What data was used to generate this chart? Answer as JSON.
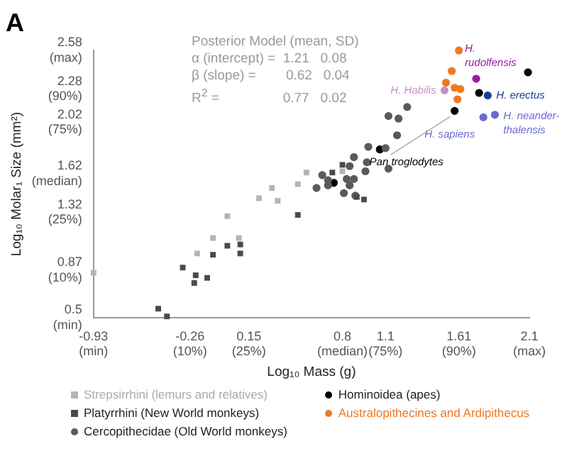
{
  "chart_data": {
    "type": "scatter",
    "title": "A",
    "xlabel": "Log₁₀ Mass (g)",
    "ylabel": "Log₁₀ Molar₁ Size (mm²)",
    "xlim": [
      -0.93,
      2.1
    ],
    "ylim": [
      0.5,
      2.58
    ],
    "xticks": [
      {
        "value": -0.93,
        "label": "-0.93\n(min)"
      },
      {
        "value": -0.26,
        "label": "-0.26\n(10%)"
      },
      {
        "value": 0.15,
        "label": "0.15\n(25%)"
      },
      {
        "value": 0.8,
        "label": "0.8\n(median)"
      },
      {
        "value": 1.1,
        "label": "1.1\n(75%)"
      },
      {
        "value": 1.61,
        "label": "1.61\n(90%)"
      },
      {
        "value": 2.1,
        "label": "2.1\n(max)"
      }
    ],
    "yticks": [
      {
        "value": 0.5,
        "label": "0.5\n(min)"
      },
      {
        "value": 0.87,
        "label": "0.87\n(10%)"
      },
      {
        "value": 1.32,
        "label": "1.32\n(25%)"
      },
      {
        "value": 1.62,
        "label": "1.62\n(median)"
      },
      {
        "value": 2.02,
        "label": "2.02\n(75%)"
      },
      {
        "value": 2.28,
        "label": "2.28\n(90%)"
      },
      {
        "value": 2.58,
        "label": "2.58\n(max)"
      }
    ],
    "grid": false,
    "legend": "bottom",
    "series": [
      {
        "name": "Strepsirrhini (lemurs and relatives)",
        "color": "#b4b4b4",
        "marker": "square",
        "x": [
          -0.93,
          -0.21,
          -0.1,
          0.08,
          0.0,
          0.22,
          0.31,
          0.35,
          0.49,
          0.55,
          0.8
        ],
        "values": [
          0.85,
          1.0,
          1.12,
          1.12,
          1.29,
          1.43,
          1.51,
          1.41,
          1.54,
          1.63,
          1.64
        ]
      },
      {
        "name": "Platyrrhini (New World monkeys)",
        "color": "#4a4a4a",
        "marker": "square",
        "x": [
          -0.48,
          -0.42,
          -0.31,
          -0.22,
          -0.23,
          -0.14,
          -0.1,
          0.0,
          0.09,
          0.09,
          0.49,
          0.73,
          0.8,
          0.9,
          0.95
        ],
        "values": [
          0.57,
          0.51,
          0.89,
          0.83,
          0.77,
          0.81,
          0.99,
          1.06,
          1.07,
          1.0,
          1.3,
          1.63,
          1.69,
          1.44,
          1.42
        ]
      },
      {
        "name": "Cercopithecidae (Old World monkeys)",
        "color": "#5a5a5a",
        "marker": "circle",
        "x": [
          1.25,
          1.12,
          1.19,
          1.18,
          0.98,
          1.1,
          0.88,
          0.97,
          1.12,
          0.96,
          0.85,
          0.66,
          0.7,
          0.62,
          0.83,
          0.88,
          0.85,
          0.81,
          0.89,
          0.7
        ],
        "values": [
          2.14,
          2.07,
          2.05,
          1.92,
          1.83,
          1.82,
          1.75,
          1.71,
          1.66,
          1.64,
          1.68,
          1.61,
          1.57,
          1.51,
          1.58,
          1.58,
          1.53,
          1.47,
          1.45,
          1.53
        ]
      },
      {
        "name": "Hominoidea (apes)",
        "color": "#000000",
        "marker": "circle",
        "x": [
          0.74,
          1.06,
          1.58,
          1.75,
          2.09
        ],
        "values": [
          1.55,
          1.81,
          2.11,
          2.25,
          2.41
        ]
      },
      {
        "name": "Australopithecines and Ardipithecus",
        "color": "#f07820",
        "marker": "circle",
        "x": [
          1.61,
          1.56,
          1.52,
          1.58,
          1.62,
          1.6
        ],
        "values": [
          2.58,
          2.42,
          2.33,
          2.29,
          2.28,
          2.2
        ]
      },
      {
        "marker": "circle",
        "colors": [
          "#9b1aa0",
          "#c58fc8",
          "#1f3a93",
          "#6a6ad0",
          "#6a6ad0"
        ],
        "x": [
          1.73,
          1.51,
          1.81,
          1.78,
          1.86
        ],
        "values": [
          2.36,
          2.27,
          2.23,
          2.06,
          2.08
        ]
      }
    ],
    "annotations": [
      "Posterior Model (mean, SD)",
      "α (intercept) =  1.21   0.08",
      "β (slope) =        0.62   0.04",
      "R$^{2}$ =                 0.77   0.02",
      {
        "text": "H.\nrudolfensis",
        "x": 1.73,
        "y": 2.36
      },
      {
        "text": "H. Habilis",
        "x": 1.51,
        "y": 2.27
      },
      {
        "text": "H. erectus",
        "x": 1.81,
        "y": 2.23
      },
      {
        "text": "H. sapiens",
        "x": 1.78,
        "y": 2.06
      },
      {
        "text": "H. neander-\nthalensis",
        "x": 1.86,
        "y": 2.08
      },
      {
        "text": "Pan troglodytes",
        "x": 1.58,
        "y": 2.11
      }
    ]
  }
}
